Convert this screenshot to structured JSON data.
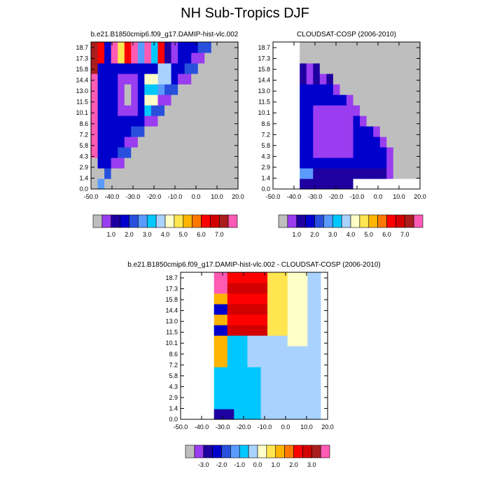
{
  "figure_title": "NH Sub-Tropics DJF",
  "chart_data": [
    {
      "type": "heatmap",
      "title": "b.e21.B1850cmip6.f09_g17.DAMIP-hist-vlc.002",
      "xlabel": "",
      "ylabel": "",
      "x_ticks": [
        "-50.0",
        "-40.0",
        "-30.0",
        "-20.0",
        "-10.0",
        "0.0",
        "10.0",
        "20.0"
      ],
      "y_ticks": [
        "0.0",
        "1.4",
        "2.9",
        "4.3",
        "5.8",
        "7.2",
        "8.6",
        "10.1",
        "11.5",
        "13.0",
        "14.4",
        "15.8",
        "17.3",
        "18.7"
      ],
      "colorbar_labels": [
        "1.0",
        "2.0",
        "3.0",
        "4.0",
        "5.0",
        "6.0",
        "7.0"
      ],
      "colorbar_colors": [
        "#bebebe",
        "#9a3cf0",
        "#1e00a0",
        "#0000cd",
        "#2850dc",
        "#5a9bff",
        "#00c8ff",
        "#aad2ff",
        "#ffffc8",
        "#ffe650",
        "#ffb400",
        "#ff7800",
        "#ff0000",
        "#d20000",
        "#aa1e1e",
        "#ff5ab4"
      ],
      "missing_color": "#bebebe"
    },
    {
      "type": "heatmap",
      "title": "CLOUDSAT-COSP (2006-2010)",
      "xlabel": "",
      "ylabel": "",
      "x_ticks": [
        "-50.0",
        "-40.0",
        "-30.0",
        "-20.0",
        "-10.0",
        "0.0",
        "10.0",
        "20.0"
      ],
      "y_ticks": [
        "0.0",
        "1.4",
        "2.9",
        "4.3",
        "5.8",
        "7.2",
        "8.6",
        "10.1",
        "11.5",
        "13.0",
        "14.4",
        "15.8",
        "17.3",
        "18.7"
      ],
      "colorbar_labels": [
        "1.0",
        "2.0",
        "3.0",
        "4.0",
        "5.0",
        "6.0",
        "7.0"
      ],
      "colorbar_colors": [
        "#bebebe",
        "#9a3cf0",
        "#1e00a0",
        "#0000cd",
        "#2850dc",
        "#5a9bff",
        "#00c8ff",
        "#aad2ff",
        "#ffffc8",
        "#ffe650",
        "#ffb400",
        "#ff7800",
        "#ff0000",
        "#d20000",
        "#aa1e1e",
        "#ff5ab4"
      ],
      "missing_color": "#bebebe"
    },
    {
      "type": "heatmap",
      "title": "b.e21.B1850cmip6.f09_g17.DAMIP-hist-vlc.002 - CLOUDSAT-COSP (2006-2010)",
      "xlabel": "",
      "ylabel": "",
      "x_ticks": [
        "-50.0",
        "-40.0",
        "-30.0",
        "-20.0",
        "-10.0",
        "0.0",
        "10.0",
        "20.0"
      ],
      "y_ticks": [
        "0.0",
        "1.4",
        "2.9",
        "4.3",
        "5.8",
        "7.2",
        "8.6",
        "10.1",
        "11.5",
        "13.0",
        "14.4",
        "15.8",
        "17.3",
        "18.7"
      ],
      "colorbar_labels": [
        "-3.0",
        "-2.0",
        "-1.0",
        "0.0",
        "1.0",
        "2.0",
        "3.0"
      ],
      "colorbar_colors": [
        "#bebebe",
        "#9a3cf0",
        "#1e00a0",
        "#0000cd",
        "#2850dc",
        "#5a9bff",
        "#00c8ff",
        "#aad2ff",
        "#ffffc8",
        "#ffe650",
        "#ffb400",
        "#ff7800",
        "#ff0000",
        "#d20000",
        "#aa1e1e",
        "#ff5ab4"
      ],
      "missing_color": "#bebebe"
    }
  ]
}
